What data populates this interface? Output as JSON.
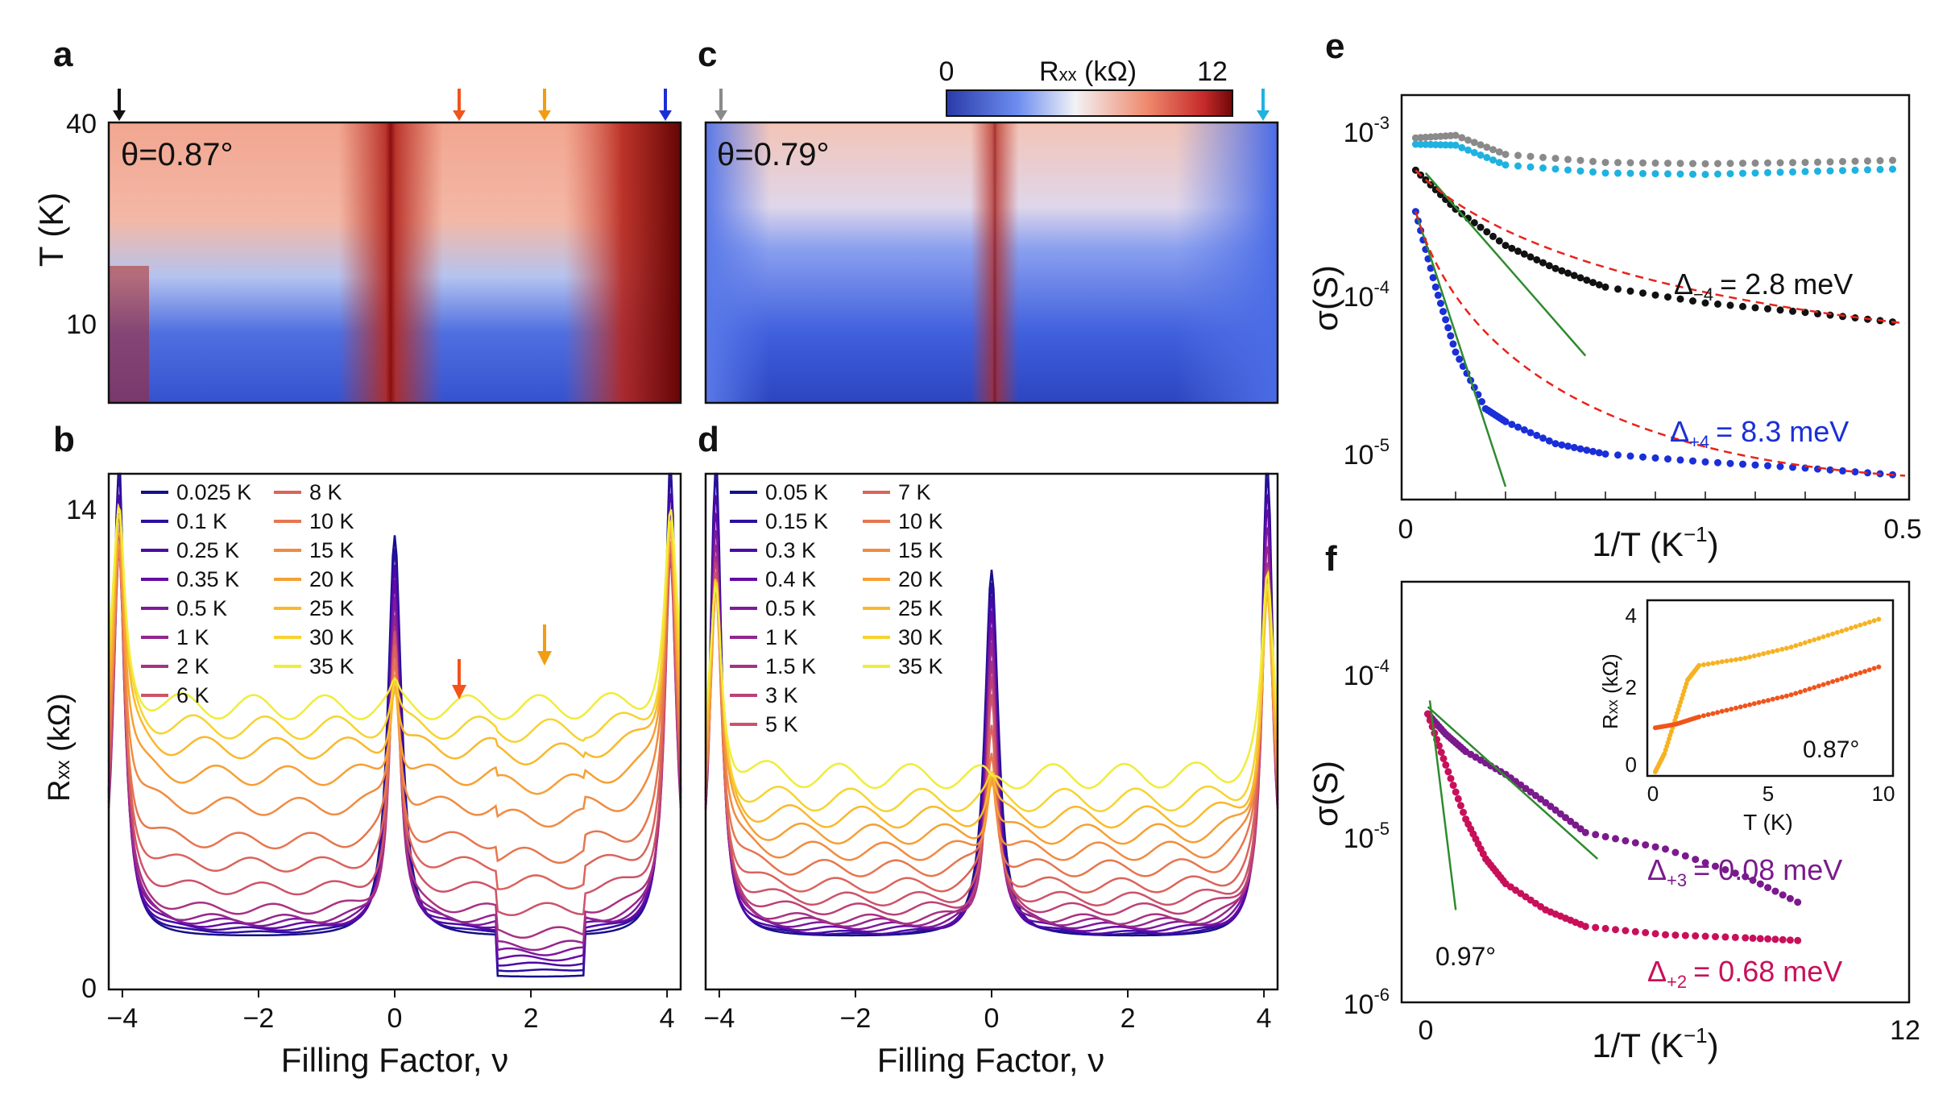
{
  "colors": {
    "arrow_black": "#111111",
    "arrow_red": "#f2541b",
    "arrow_orange": "#f39c12",
    "arrow_blue": "#1a2fd8",
    "arrow_gray": "#8a8a8a",
    "arrow_cyan": "#1fb2e0",
    "fit_green": "#2e8b2e",
    "fit_red": "#e8231b",
    "delta_blue": "#1a2fd8",
    "delta_purple": "#7a1a8c",
    "delta_crimson": "#c8105a"
  },
  "colorbar": {
    "min_label": "0",
    "max_label": "12",
    "title": "R",
    "title_sub": "xx",
    "title_unit": " (kΩ)"
  },
  "panels": {
    "a": {
      "label": "a",
      "theta": "θ=0.87°",
      "ylabel": "T (K)",
      "ytick_40": "40",
      "ytick_10": "10"
    },
    "b": {
      "label": "b",
      "ylabel_main": "R",
      "ylabel_sub": "xx",
      "ylabel_unit": " (kΩ)",
      "ytick_14": "14",
      "ytick_0": "0",
      "xlabel": "Filling Factor, ν",
      "xticks": [
        "−4",
        "−2",
        "0",
        "2",
        "4"
      ]
    },
    "c": {
      "label": "c",
      "theta": "θ=0.79°"
    },
    "d": {
      "label": "d",
      "xlabel": "Filling Factor, ν",
      "xticks": [
        "−4",
        "−2",
        "0",
        "2",
        "4"
      ]
    },
    "e": {
      "label": "e",
      "ylabel": "σ(S)",
      "xlabel": "1/T (K",
      "xlabel_exp": "−1",
      "xlabel_end": ")",
      "ytick_base": "10",
      "yticks_exp": [
        "-3",
        "-4",
        "-5"
      ],
      "xticks": [
        "0",
        "0.5"
      ],
      "delta_m4": "Δ",
      "delta_m4_sub": "−4",
      "delta_m4_val": "= 2.8 meV",
      "delta_p4": "Δ",
      "delta_p4_sub": "+4",
      "delta_p4_val": "= 8.3 meV"
    },
    "f": {
      "label": "f",
      "ylabel": "σ(S)",
      "xlabel": "1/T (K",
      "xlabel_exp": "−1",
      "xlabel_end": ")",
      "ytick_base": "10",
      "yticks_exp": [
        "-4",
        "-5",
        "-6"
      ],
      "xticks": [
        "0",
        "12"
      ],
      "angle_label": "0.97°",
      "delta_p3": "Δ",
      "delta_p3_sub": "+3",
      "delta_p3_val": "= 0.08 meV",
      "delta_p2": "Δ",
      "delta_p2_sub": "+2",
      "delta_p2_val": "= 0.68 meV",
      "inset": {
        "ylabel_main": "R",
        "ylabel_sub": "xx",
        "ylabel_unit": " (kΩ)",
        "xlabel": "T (K)",
        "yticks": [
          "4",
          "2",
          "0"
        ],
        "xticks": [
          "0",
          "5",
          "10"
        ],
        "angle": "0.87°"
      }
    }
  },
  "chart_data": [
    {
      "id": "b",
      "type": "line",
      "title": "",
      "xlabel": "Filling Factor, ν",
      "ylabel": "Rxx (kΩ)",
      "xlim": [
        -4.2,
        4.2
      ],
      "ylim": [
        0,
        15
      ],
      "legend": [
        "0.025 K",
        "0.1 K",
        "0.25 K",
        "0.35 K",
        "0.5 K",
        "1 K",
        "2 K",
        "6 K",
        "8 K",
        "10 K",
        "15 K",
        "20 K",
        "25 K",
        "30 K",
        "35 K"
      ],
      "series_note": "Each curve: peak at ν=0 and ν=±4; plateau baseline rises with T",
      "base_levels": [
        1.5,
        1.6,
        1.7,
        1.8,
        1.9,
        2.0,
        2.3,
        2.9,
        3.6,
        4.3,
        5.3,
        6.2,
        7.0,
        7.6,
        8.2
      ],
      "cnp_peaks": [
        13.2,
        12.8,
        12.3,
        11.9,
        11.5,
        11.0,
        10.6,
        10.3,
        9.8,
        9.5,
        9.3,
        9.1,
        8.9,
        8.8,
        8.7
      ]
    },
    {
      "id": "d",
      "type": "line",
      "title": "",
      "xlabel": "Filling Factor, ν",
      "ylabel": "Rxx (kΩ)",
      "xlim": [
        -4.2,
        4.2
      ],
      "ylim": [
        0,
        15
      ],
      "legend": [
        "0.05 K",
        "0.15 K",
        "0.3 K",
        "0.4 K",
        "0.5 K",
        "1 K",
        "1.5 K",
        "3 K",
        "5 K",
        "7 K",
        "10 K",
        "15 K",
        "20 K",
        "25 K",
        "30 K",
        "35 K"
      ],
      "base_levels": [
        1.5,
        1.55,
        1.6,
        1.7,
        1.8,
        1.9,
        2.0,
        2.3,
        2.6,
        3.0,
        3.5,
        4.0,
        4.5,
        5.0,
        5.5,
        6.2
      ],
      "cnp_peaks": [
        12.2,
        11.8,
        11.4,
        11.0,
        10.6,
        10.2,
        9.6,
        9.0,
        8.4,
        7.6,
        7.0,
        6.5,
        6.2,
        6.1,
        6.0,
        6.0
      ]
    },
    {
      "id": "e",
      "type": "scatter",
      "xlabel": "1/T (K^-1)",
      "ylabel": "σ(S)",
      "xlim": [
        0,
        0.5
      ],
      "ylim": [
        5e-06,
        0.0015
      ],
      "yscale": "log",
      "series": [
        {
          "name": "gray",
          "x": [
            0.01,
            0.05,
            0.1,
            0.2,
            0.3,
            0.4,
            0.5
          ],
          "y": [
            0.00082,
            0.00085,
            0.00065,
            0.00058,
            0.00057,
            0.00058,
            0.0006
          ]
        },
        {
          "name": "cyan",
          "x": [
            0.01,
            0.05,
            0.1,
            0.2,
            0.3,
            0.4,
            0.5
          ],
          "y": [
            0.00075,
            0.00074,
            0.00056,
            0.0005,
            0.00049,
            0.00051,
            0.00053
          ]
        },
        {
          "name": "black ν=-4",
          "x": [
            0.01,
            0.05,
            0.1,
            0.15,
            0.2,
            0.3,
            0.4,
            0.5
          ],
          "y": [
            0.00052,
            0.0003,
            0.00018,
            0.00013,
            0.0001,
            8e-05,
            7e-05,
            6e-05
          ]
        },
        {
          "name": "blue ν=+4",
          "x": [
            0.01,
            0.03,
            0.05,
            0.08,
            0.1,
            0.15,
            0.2,
            0.3,
            0.4,
            0.5
          ],
          "y": [
            0.00029,
            0.0001,
            4e-05,
            1.8e-05,
            1.5e-05,
            1.1e-05,
            9.5e-06,
            8.5e-06,
            7.8e-06,
            7e-06
          ]
        }
      ]
    },
    {
      "id": "f",
      "type": "scatter",
      "xlabel": "1/T (K^-1)",
      "ylabel": "σ(S)",
      "xlim": [
        0,
        12
      ],
      "ylim": [
        1e-06,
        0.0003
      ],
      "yscale": "log",
      "series": [
        {
          "name": "purple ν=+3",
          "x": [
            0.05,
            0.5,
            1,
            2,
            3,
            4,
            6,
            8,
            9.5
          ],
          "y": [
            5e-05,
            3.8e-05,
            3e-05,
            2.2e-05,
            1.5e-05,
            1e-05,
            8e-06,
            5.5e-06,
            3.7e-06
          ]
        },
        {
          "name": "crimson ν=+2",
          "x": [
            0.05,
            0.5,
            1,
            1.5,
            2,
            3,
            4,
            6,
            8,
            9.5
          ],
          "y": [
            5e-05,
            2.5e-05,
            1.2e-05,
            7e-06,
            5e-06,
            3.5e-06,
            2.8e-06,
            2.5e-06,
            2.4e-06,
            2.3e-06
          ]
        }
      ],
      "inset": {
        "xlabel": "T (K)",
        "ylabel": "Rxx (kΩ)",
        "xlim": [
          0,
          10
        ],
        "ylim": [
          0,
          4.5
        ],
        "series": [
          {
            "name": "orange",
            "x": [
              0.1,
              0.5,
              1,
              1.5,
              2,
              4,
              6,
              8,
              10
            ],
            "y": [
              0,
              0.5,
              1.5,
              2.5,
              2.9,
              3.1,
              3.4,
              3.8,
              4.2
            ]
          },
          {
            "name": "red-orange",
            "x": [
              0.1,
              1,
              2,
              4,
              6,
              8,
              10
            ],
            "y": [
              1.2,
              1.3,
              1.5,
              1.8,
              2.1,
              2.5,
              2.9
            ]
          }
        ]
      }
    }
  ]
}
